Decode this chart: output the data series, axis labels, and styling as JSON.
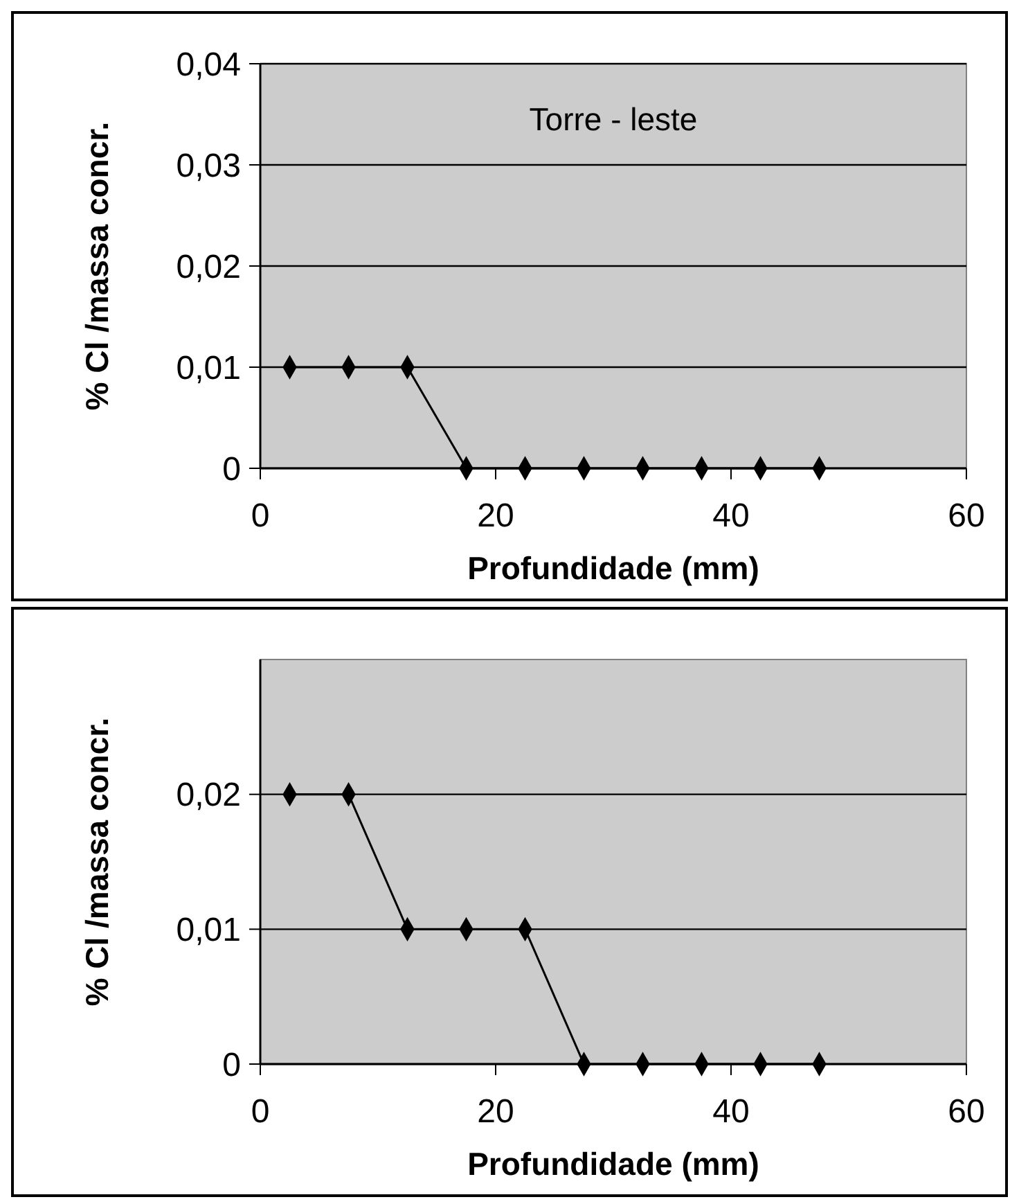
{
  "chart_data": [
    {
      "type": "line",
      "title": "Torre - leste",
      "xlabel": "Profundidade (mm)",
      "ylabel": "% Cl /massa concr.",
      "xlim": [
        0,
        60
      ],
      "xticks": [
        0,
        20,
        40,
        60
      ],
      "ylim": [
        0,
        0.04
      ],
      "yticks": [
        {
          "value": 0,
          "label": "0"
        },
        {
          "value": 0.01,
          "label": "0,01"
        },
        {
          "value": 0.02,
          "label": "0,02"
        },
        {
          "value": 0.03,
          "label": "0,03"
        },
        {
          "value": 0.04,
          "label": "0,04"
        }
      ],
      "grid": "y",
      "marker": "diamond",
      "line_style": "solid",
      "series": [
        {
          "color": "#000000",
          "x": [
            2.5,
            7.5,
            12.5,
            17.5,
            22.5,
            27.5,
            32.5,
            37.5,
            42.5,
            47.5
          ],
          "values": [
            0.01,
            0.01,
            0.01,
            0,
            0,
            0,
            0,
            0,
            0,
            0
          ]
        }
      ]
    },
    {
      "type": "line",
      "xlabel": "Profundidade (mm)",
      "ylabel": "% Cl /massa concr.",
      "xlim": [
        0,
        60
      ],
      "xticks": [
        0,
        20,
        40,
        60
      ],
      "ylim": [
        0,
        0.03
      ],
      "yticks": [
        {
          "value": 0,
          "label": "0"
        },
        {
          "value": 0.01,
          "label": "0,01"
        },
        {
          "value": 0.02,
          "label": "0,02"
        }
      ],
      "grid": "y",
      "marker": "diamond",
      "line_style": "solid",
      "series": [
        {
          "color": "#000000",
          "x": [
            2.5,
            7.5,
            12.5,
            17.5,
            22.5,
            27.5,
            32.5,
            37.5,
            42.5,
            47.5
          ],
          "values": [
            0.02,
            0.02,
            0.01,
            0.01,
            0.01,
            0,
            0,
            0,
            0,
            0
          ]
        }
      ]
    }
  ]
}
